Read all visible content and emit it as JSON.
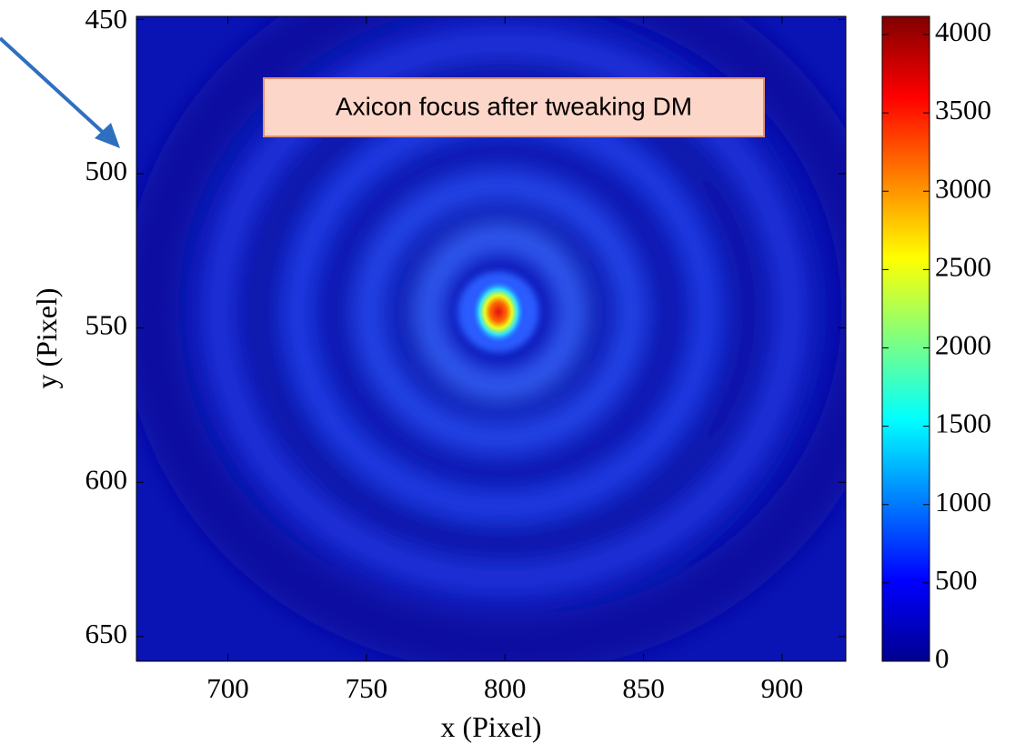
{
  "chart_data": {
    "type": "heatmap",
    "xlabel": "x  (Pixel)",
    "ylabel": "y  (Pixel)",
    "annotation": "Axicon focus after tweaking DM",
    "xlim": [
      667,
      923
    ],
    "xticks": [
      700,
      750,
      800,
      850,
      900
    ],
    "ylim": [
      449,
      658
    ],
    "yticks": [
      450,
      500,
      550,
      600,
      650
    ],
    "y_inverted": true,
    "clim": [
      0,
      4116
    ],
    "cticks": [
      0,
      500,
      1000,
      1500,
      2000,
      2500,
      3000,
      3500,
      4000
    ],
    "colormap": [
      "#00008f",
      "#0000ff",
      "#0080ff",
      "#00ffff",
      "#80ff80",
      "#ffff00",
      "#ff8000",
      "#ff0000",
      "#800000"
    ]
  }
}
